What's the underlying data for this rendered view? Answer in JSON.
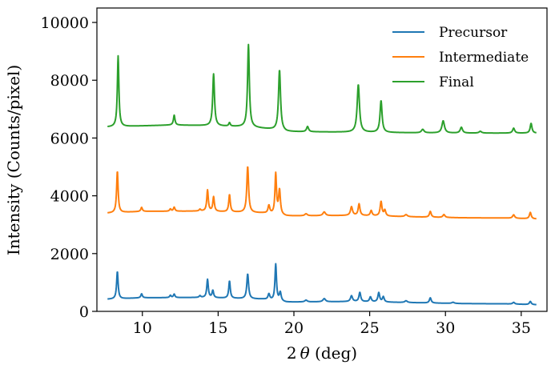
{
  "chart_data": {
    "type": "line",
    "xlabel_prefix": "2",
    "xlabel_symbol": "θ",
    "xlabel_suffix": " (deg)",
    "ylabel": "Intensity (Counts/pixel)",
    "xlim": [
      7,
      36.7
    ],
    "ylim": [
      0,
      10500
    ],
    "xticks": [
      10,
      15,
      20,
      25,
      30,
      35
    ],
    "yticks": [
      0,
      2000,
      4000,
      6000,
      8000,
      10000
    ],
    "legend_position": "top-right",
    "grid": false,
    "series": [
      {
        "name": "Precursor",
        "color": "#1f77b4",
        "baseline": [
          [
            7.7,
            420
          ],
          [
            10,
            470
          ],
          [
            14,
            480
          ],
          [
            18,
            420
          ],
          [
            19.5,
            320
          ],
          [
            24,
            340
          ],
          [
            28,
            300
          ],
          [
            31,
            270
          ],
          [
            34,
            260
          ],
          [
            36,
            230
          ]
        ],
        "peaks": [
          [
            8.35,
            950,
            0.06
          ],
          [
            9.95,
            140,
            0.06
          ],
          [
            11.85,
            80,
            0.06
          ],
          [
            12.1,
            120,
            0.06
          ],
          [
            13.8,
            60,
            0.06
          ],
          [
            14.3,
            630,
            0.06
          ],
          [
            14.65,
            250,
            0.06
          ],
          [
            15.75,
            600,
            0.06
          ],
          [
            16.95,
            860,
            0.07
          ],
          [
            18.35,
            200,
            0.07
          ],
          [
            18.8,
            1260,
            0.06
          ],
          [
            19.1,
            300,
            0.07
          ],
          [
            20.8,
            60,
            0.1
          ],
          [
            22.0,
            110,
            0.1
          ],
          [
            23.8,
            200,
            0.08
          ],
          [
            24.35,
            320,
            0.07
          ],
          [
            25.05,
            170,
            0.07
          ],
          [
            25.6,
            320,
            0.07
          ],
          [
            25.9,
            180,
            0.07
          ],
          [
            27.4,
            60,
            0.1
          ],
          [
            29.0,
            180,
            0.07
          ],
          [
            30.5,
            40,
            0.1
          ],
          [
            34.5,
            60,
            0.08
          ],
          [
            35.6,
            110,
            0.07
          ]
        ]
      },
      {
        "name": "Intermediate",
        "color": "#ff7f0e",
        "baseline": [
          [
            7.7,
            3400
          ],
          [
            10,
            3460
          ],
          [
            14,
            3470
          ],
          [
            18,
            3400
          ],
          [
            19.5,
            3300
          ],
          [
            24,
            3320
          ],
          [
            28,
            3270
          ],
          [
            31,
            3240
          ],
          [
            34,
            3230
          ],
          [
            36,
            3200
          ]
        ],
        "peaks": [
          [
            8.35,
            1440,
            0.06
          ],
          [
            9.95,
            140,
            0.06
          ],
          [
            11.85,
            80,
            0.06
          ],
          [
            12.1,
            140,
            0.06
          ],
          [
            13.8,
            60,
            0.06
          ],
          [
            14.3,
            730,
            0.06
          ],
          [
            14.7,
            500,
            0.06
          ],
          [
            15.75,
            600,
            0.06
          ],
          [
            16.95,
            1600,
            0.07
          ],
          [
            18.35,
            280,
            0.07
          ],
          [
            18.8,
            1400,
            0.06
          ],
          [
            19.05,
            850,
            0.07
          ],
          [
            20.8,
            70,
            0.1
          ],
          [
            22.0,
            130,
            0.1
          ],
          [
            23.8,
            300,
            0.08
          ],
          [
            24.3,
            400,
            0.07
          ],
          [
            25.1,
            180,
            0.07
          ],
          [
            25.75,
            500,
            0.07
          ],
          [
            26.0,
            200,
            0.07
          ],
          [
            27.4,
            70,
            0.1
          ],
          [
            29.0,
            200,
            0.07
          ],
          [
            29.9,
            100,
            0.08
          ],
          [
            34.5,
            120,
            0.08
          ],
          [
            35.6,
            220,
            0.07
          ]
        ]
      },
      {
        "name": "Final",
        "color": "#2ca02c",
        "baseline": [
          [
            7.7,
            6380
          ],
          [
            10,
            6420
          ],
          [
            12,
            6450
          ],
          [
            14,
            6430
          ],
          [
            17,
            6380
          ],
          [
            18.5,
            6300
          ],
          [
            19.5,
            6220
          ],
          [
            24,
            6200
          ],
          [
            28,
            6180
          ],
          [
            31,
            6170
          ],
          [
            34,
            6170
          ],
          [
            36,
            6170
          ]
        ],
        "peaks": [
          [
            8.4,
            2450,
            0.06
          ],
          [
            12.1,
            340,
            0.06
          ],
          [
            14.7,
            1800,
            0.07
          ],
          [
            15.75,
            120,
            0.06
          ],
          [
            17.0,
            2850,
            0.07
          ],
          [
            19.05,
            2100,
            0.08
          ],
          [
            20.9,
            180,
            0.08
          ],
          [
            24.25,
            1650,
            0.09
          ],
          [
            25.75,
            1100,
            0.08
          ],
          [
            28.5,
            120,
            0.1
          ],
          [
            29.85,
            420,
            0.1
          ],
          [
            31.05,
            200,
            0.09
          ],
          [
            32.3,
            60,
            0.1
          ],
          [
            34.5,
            170,
            0.08
          ],
          [
            35.65,
            340,
            0.07
          ]
        ]
      }
    ]
  }
}
